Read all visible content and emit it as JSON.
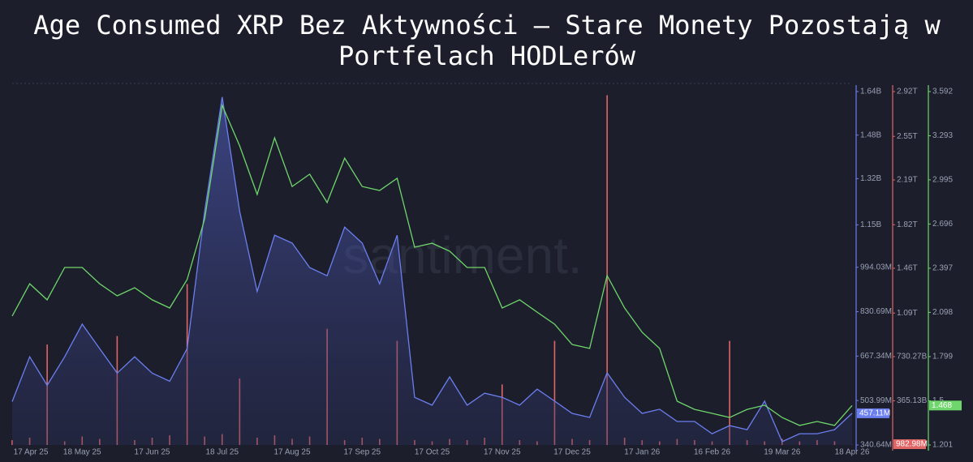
{
  "chart_data": {
    "type": "line",
    "title": "Age Consumed XRP Bez Aktywności – Stare Monety Pozostają w Portfelach HODLerów",
    "watermark": "santiment.",
    "categories": [
      "17 Apr 25",
      null,
      null,
      null,
      "18 May 25",
      null,
      null,
      null,
      "17 Jun 25",
      null,
      null,
      null,
      "18 Jul 25",
      null,
      null,
      null,
      "17 Aug 25",
      null,
      null,
      null,
      "17 Sep 25",
      null,
      null,
      null,
      "17 Oct 25",
      null,
      null,
      null,
      "17 Nov 25",
      null,
      null,
      null,
      "17 Dec 25",
      null,
      null,
      null,
      "17 Jan 26",
      null,
      null,
      null,
      "16 Feb 26",
      null,
      null,
      null,
      "19 Mar 26",
      null,
      null,
      null,
      "18 Apr 26"
    ],
    "series": [
      {
        "type": "area",
        "axis": "y",
        "color": "#6b7ff0",
        "last_label": "457.11M",
        "values": [
          500000000.0,
          665000000.0,
          560000000.0,
          665000000.0,
          785000000.0,
          695000000.0,
          605000000.0,
          665000000.0,
          605000000.0,
          575000000.0,
          695000000.0,
          1200000000.0,
          1620000000.0,
          1200000000.0,
          905000000.0,
          1112000000.0,
          1083000000.0,
          993000000.0,
          963000000.0,
          1142000000.0,
          1083000000.0,
          933000000.0,
          1112000000.0,
          516000000.0,
          487000000.0,
          591000000.0,
          487000000.0,
          531000000.0,
          516000000.0,
          487000000.0,
          546000000.0,
          502000000.0,
          457000000.0,
          442000000.0,
          606000000.0,
          516000000.0,
          457000000.0,
          472000000.0,
          427000000.0,
          427000000.0,
          382000000.0,
          412000000.0,
          397000000.0,
          502000000.0,
          353000000.0,
          382000000.0,
          382000000.0,
          397000000.0,
          457110000
        ]
      },
      {
        "type": "bar",
        "axis": "y2",
        "color": "#e06666",
        "last_label": "982.98M",
        "values": [
          40000000000.0,
          60000000000.0,
          830000000000.0,
          30000000000.0,
          70000000000.0,
          50000000000.0,
          900000000000.0,
          40000000000.0,
          60000000000.0,
          80000000000.0,
          1330000000000.0,
          70000000000.0,
          90000000000.0,
          550000000000.0,
          60000000000.0,
          80000000000.0,
          50000000000.0,
          70000000000.0,
          960000000000.0,
          40000000000.0,
          60000000000.0,
          50000000000.0,
          860000000000.0,
          40000000000.0,
          30000000000.0,
          50000000000.0,
          40000000000.0,
          60000000000.0,
          500000000000.0,
          40000000000.0,
          30000000000.0,
          860000000000.0,
          50000000000.0,
          40000000000.0,
          2890000000000.0,
          60000000000.0,
          40000000000.0,
          30000000000.0,
          50000000000.0,
          40000000000.0,
          30000000000.0,
          860000000000.0,
          40000000000.0,
          30000000000.0,
          50000000000.0,
          30000000000.0,
          40000000000.0,
          30000000000.0,
          982980000
        ]
      },
      {
        "type": "line",
        "axis": "y3",
        "color": "#6fd66b",
        "last_label": "1.468",
        "values": [
          2.073,
          2.292,
          2.183,
          2.402,
          2.402,
          2.292,
          2.21,
          2.265,
          2.183,
          2.128,
          2.32,
          2.731,
          3.499,
          3.225,
          2.896,
          3.279,
          2.95,
          3.033,
          2.841,
          3.142,
          2.95,
          2.923,
          3.005,
          2.539,
          2.566,
          2.512,
          2.402,
          2.402,
          2.128,
          2.183,
          2.1,
          2.018,
          1.881,
          1.854,
          2.347,
          2.128,
          1.963,
          1.854,
          1.497,
          1.442,
          1.415,
          1.387,
          1.442,
          1.47,
          1.387,
          1.333,
          1.36,
          1.333,
          1.468
        ]
      }
    ],
    "ylim": [
      340640000.0,
      1640000000.0
    ],
    "yticks": [
      {
        "value": 340640000.0,
        "label": "340.64M"
      },
      {
        "value": 503990000.0,
        "label": "503.99M"
      },
      {
        "value": 667340000.0,
        "label": "667.34M"
      },
      {
        "value": 830690000.0,
        "label": "830.69M"
      },
      {
        "value": 994030000.0,
        "label": "994.03M"
      },
      {
        "value": 1150000000.0,
        "label": "1.15B"
      },
      {
        "value": 1320000000.0,
        "label": "1.32B"
      },
      {
        "value": 1480000000.0,
        "label": "1.48B"
      },
      {
        "value": 1640000000.0,
        "label": "1.64B"
      }
    ],
    "y2lim": [
      0,
      2920000000000.0
    ],
    "y2ticks": [
      {
        "value": 365130000000.0,
        "label": "365.13B"
      },
      {
        "value": 730270000000.0,
        "label": "730.27B"
      },
      {
        "value": 1090000000000.0,
        "label": "1.09T"
      },
      {
        "value": 1460000000000.0,
        "label": "1.46T"
      },
      {
        "value": 1820000000000.0,
        "label": "1.82T"
      },
      {
        "value": 2190000000000.0,
        "label": "2.19T"
      },
      {
        "value": 2550000000000.0,
        "label": "2.55T"
      },
      {
        "value": 2920000000000.0,
        "label": "2.92T"
      }
    ],
    "y3lim": [
      1.201,
      3.592
    ],
    "y3ticks": [
      1.201,
      1.5,
      1.799,
      2.098,
      2.397,
      2.696,
      2.995,
      3.293,
      3.592
    ]
  }
}
